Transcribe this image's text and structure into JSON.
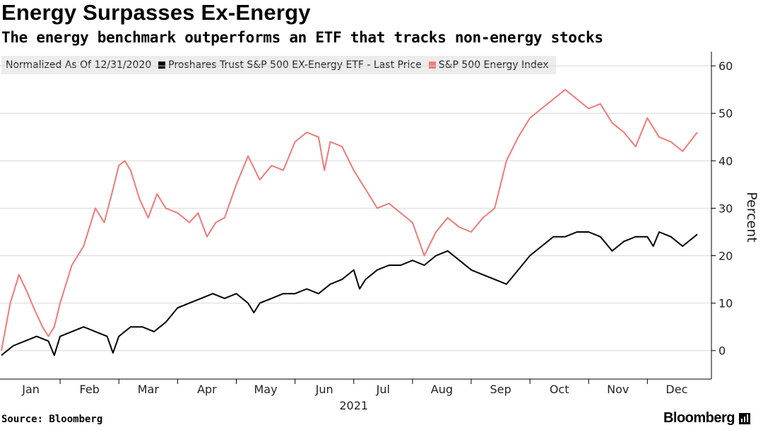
{
  "header": {
    "title": "Energy Surpasses Ex-Energy",
    "subtitle": "The energy benchmark outperforms an ETF that tracks non-energy stocks"
  },
  "legend": {
    "note": "Normalized As Of 12/31/2020",
    "series_a": "Proshares Trust S&P 500 EX-Energy ETF - Last Price",
    "series_b": "S&P 500 Energy Index"
  },
  "footer": {
    "source": "Source: Bloomberg",
    "brand": "Bloomberg"
  },
  "colors": {
    "etf": "#000000",
    "energy": "#f07a78",
    "grid": "#d8d8d8"
  },
  "chart_data": {
    "type": "line",
    "title": "Energy Surpasses Ex-Energy",
    "ylabel": "Percent",
    "xlabel": "2021",
    "ylim": [
      -6,
      63
    ],
    "yticks": [
      0,
      10,
      20,
      30,
      40,
      50,
      60
    ],
    "x_range_months": [
      0,
      11.85
    ],
    "month_labels": [
      "Jan",
      "Feb",
      "Mar",
      "Apr",
      "May",
      "Jun",
      "Jul",
      "Aug",
      "Sep",
      "Oct",
      "Nov",
      "Dec"
    ],
    "year_label": "2021",
    "grid": true,
    "series": [
      {
        "name": "Proshares Trust S&P 500 EX-Energy ETF - Last Price",
        "color": "#000000",
        "x": [
          0,
          0.2,
          0.4,
          0.6,
          0.8,
          0.9,
          1.0,
          1.2,
          1.4,
          1.6,
          1.8,
          1.9,
          2.0,
          2.2,
          2.4,
          2.6,
          2.8,
          3.0,
          3.2,
          3.4,
          3.6,
          3.8,
          4.0,
          4.2,
          4.3,
          4.4,
          4.6,
          4.8,
          5.0,
          5.2,
          5.4,
          5.6,
          5.8,
          6.0,
          6.1,
          6.2,
          6.4,
          6.6,
          6.8,
          7.0,
          7.2,
          7.4,
          7.6,
          7.8,
          8.0,
          8.2,
          8.4,
          8.6,
          8.8,
          9.0,
          9.2,
          9.4,
          9.6,
          9.8,
          10.0,
          10.2,
          10.4,
          10.6,
          10.8,
          11.0,
          11.1,
          11.2,
          11.4,
          11.6,
          11.85
        ],
        "values": [
          -1,
          1,
          2,
          3,
          2,
          -1,
          3,
          4,
          5,
          4,
          3,
          -0.5,
          3,
          5,
          5,
          4,
          6,
          9,
          10,
          11,
          12,
          11,
          12,
          10,
          8,
          10,
          11,
          12,
          12,
          13,
          12,
          14,
          15,
          17,
          13,
          15,
          17,
          18,
          18,
          19,
          18,
          20,
          21,
          19,
          17,
          16,
          15,
          14,
          17,
          20,
          22,
          24,
          24,
          25,
          25,
          24,
          21,
          23,
          24,
          24,
          22,
          25,
          24,
          22,
          24.5
        ]
      },
      {
        "name": "S&P 500 Energy Index",
        "color": "#f07a78",
        "x": [
          0,
          0.15,
          0.3,
          0.45,
          0.55,
          0.7,
          0.8,
          0.9,
          1.0,
          1.2,
          1.4,
          1.6,
          1.75,
          1.9,
          2.0,
          2.1,
          2.2,
          2.35,
          2.5,
          2.65,
          2.8,
          3.0,
          3.2,
          3.35,
          3.5,
          3.65,
          3.8,
          4.0,
          4.2,
          4.4,
          4.6,
          4.8,
          5.0,
          5.2,
          5.4,
          5.5,
          5.6,
          5.8,
          6.0,
          6.2,
          6.4,
          6.6,
          6.8,
          7.0,
          7.2,
          7.4,
          7.6,
          7.8,
          8.0,
          8.2,
          8.4,
          8.6,
          8.8,
          9.0,
          9.2,
          9.4,
          9.6,
          9.8,
          10.0,
          10.2,
          10.4,
          10.6,
          10.8,
          11.0,
          11.2,
          11.4,
          11.6,
          11.85
        ],
        "values": [
          0,
          10,
          16,
          12,
          9,
          5,
          3,
          5,
          10,
          18,
          22,
          30,
          27,
          34,
          39,
          40,
          38,
          32,
          28,
          33,
          30,
          29,
          27,
          29,
          24,
          27,
          28,
          35,
          41,
          36,
          39,
          38,
          44,
          46,
          45,
          38,
          44,
          43,
          38,
          34,
          30,
          31,
          29,
          27,
          20,
          25,
          28,
          26,
          25,
          28,
          30,
          40,
          45,
          49,
          51,
          53,
          55,
          53,
          51,
          52,
          48,
          46,
          43,
          49,
          45,
          44,
          42,
          46
        ]
      }
    ]
  }
}
